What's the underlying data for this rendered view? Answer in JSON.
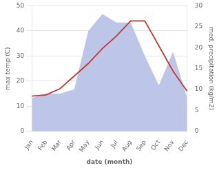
{
  "chart_data": {
    "type": "line",
    "xlabel": "date (month)",
    "ylabel": "max temp (C)",
    "y2label": "med. precipitation (kg/m2)",
    "categories": [
      "Jan",
      "Feb",
      "Mar",
      "Apr",
      "May",
      "Jun",
      "Jul",
      "Aug",
      "Sep",
      "Oct",
      "Nov",
      "Dec"
    ],
    "series": [
      {
        "type": "area",
        "axis": "y2",
        "color": "#bdc5e8",
        "values": [
          8,
          9,
          9,
          10,
          24,
          28,
          26,
          26,
          18,
          11,
          19,
          8
        ]
      },
      {
        "type": "line",
        "color": "#c0392b",
        "values": [
          14,
          14.5,
          17,
          22,
          27,
          33,
          38,
          44,
          44,
          34,
          24,
          16
        ]
      }
    ],
    "ylim": [
      0,
      50
    ],
    "yticks": [
      0,
      10,
      20,
      30,
      40,
      50
    ],
    "y2lim": [
      0,
      30
    ],
    "y2ticks": [
      0,
      5,
      10,
      15,
      20,
      25,
      30
    ],
    "grid": true
  }
}
